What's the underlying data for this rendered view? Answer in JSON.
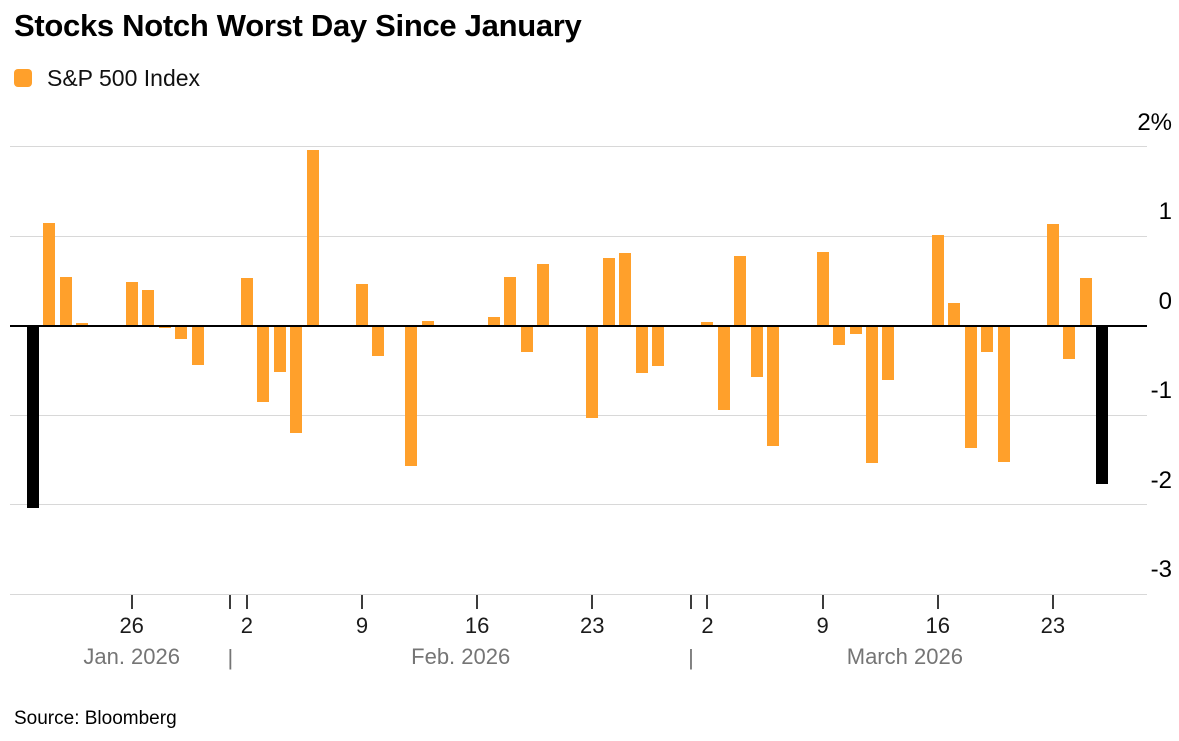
{
  "header": {
    "title": "Stocks Notch Worst Day Since January"
  },
  "legend": {
    "label": "S&P 500 Index"
  },
  "footer": {
    "source": "Source: Bloomberg"
  },
  "colors": {
    "bar": "#FFA02B",
    "highlight_bar": "#000000",
    "gridline": "#D8D8D8",
    "zero_line": "#000000",
    "tick_mark": "#3C3C3C",
    "tick_label": "#1B1B1B",
    "month_label": "#757575",
    "y_label": "#000000"
  },
  "chart_data": {
    "type": "bar",
    "title": "Stocks Notch Worst Day Since January",
    "series_name": "S&P 500 Index",
    "unit": "daily % change",
    "ylim": [
      -3,
      2
    ],
    "grid": true,
    "legend_position": "top-left",
    "y_axis_side": "right",
    "yticks": [
      {
        "value": 2,
        "label": "2%"
      },
      {
        "value": 1,
        "label": "1"
      },
      {
        "value": 0,
        "label": "0"
      },
      {
        "value": -1,
        "label": "-1"
      },
      {
        "value": -2,
        "label": "-2"
      },
      {
        "value": -3,
        "label": "-3"
      }
    ],
    "xticks": [
      {
        "date": "2026-01-26",
        "label": "26"
      },
      {
        "date": "2026-02-02",
        "label": "2"
      },
      {
        "date": "2026-02-09",
        "label": "9"
      },
      {
        "date": "2026-02-16",
        "label": "16"
      },
      {
        "date": "2026-02-23",
        "label": "23"
      },
      {
        "date": "2026-03-02",
        "label": "2"
      },
      {
        "date": "2026-03-09",
        "label": "9"
      },
      {
        "date": "2026-03-16",
        "label": "16"
      },
      {
        "date": "2026-03-23",
        "label": "23"
      }
    ],
    "months": [
      {
        "label": "Jan. 2026",
        "start": "2026-01-20",
        "end": "2026-02-01"
      },
      {
        "label": "Feb. 2026",
        "start": "2026-02-01",
        "end": "2026-03-01"
      },
      {
        "label": "March 2026",
        "start": "2026-03-01",
        "end": "2026-03-27"
      }
    ],
    "month_boundaries": [
      "2026-02-01",
      "2026-03-01"
    ],
    "month_separator_glyph": "|",
    "points": [
      {
        "date": "2026-01-20",
        "value": -2.04,
        "highlight": true
      },
      {
        "date": "2026-01-21",
        "value": 1.15
      },
      {
        "date": "2026-01-22",
        "value": 0.54
      },
      {
        "date": "2026-01-23",
        "value": 0.03
      },
      {
        "date": "2026-01-26",
        "value": 0.49
      },
      {
        "date": "2026-01-27",
        "value": 0.4
      },
      {
        "date": "2026-01-28",
        "value": -0.03
      },
      {
        "date": "2026-01-29",
        "value": -0.15
      },
      {
        "date": "2026-01-30",
        "value": -0.44
      },
      {
        "date": "2026-02-02",
        "value": 0.53
      },
      {
        "date": "2026-02-03",
        "value": -0.85
      },
      {
        "date": "2026-02-04",
        "value": -0.52
      },
      {
        "date": "2026-02-05",
        "value": -1.2
      },
      {
        "date": "2026-02-06",
        "value": 1.96
      },
      {
        "date": "2026-02-09",
        "value": 0.46
      },
      {
        "date": "2026-02-10",
        "value": -0.34
      },
      {
        "date": "2026-02-11",
        "value": 0.01
      },
      {
        "date": "2026-02-12",
        "value": -1.57
      },
      {
        "date": "2026-02-13",
        "value": 0.05
      },
      {
        "date": "2026-02-17",
        "value": 0.1
      },
      {
        "date": "2026-02-18",
        "value": 0.54
      },
      {
        "date": "2026-02-19",
        "value": -0.3
      },
      {
        "date": "2026-02-20",
        "value": 0.69
      },
      {
        "date": "2026-02-23",
        "value": -1.03
      },
      {
        "date": "2026-02-24",
        "value": 0.75
      },
      {
        "date": "2026-02-25",
        "value": 0.81
      },
      {
        "date": "2026-02-26",
        "value": -0.53
      },
      {
        "date": "2026-02-27",
        "value": -0.45
      },
      {
        "date": "2026-03-02",
        "value": 0.04
      },
      {
        "date": "2026-03-03",
        "value": -0.94
      },
      {
        "date": "2026-03-04",
        "value": 0.78
      },
      {
        "date": "2026-03-05",
        "value": -0.58
      },
      {
        "date": "2026-03-06",
        "value": -1.35
      },
      {
        "date": "2026-03-09",
        "value": 0.82
      },
      {
        "date": "2026-03-10",
        "value": -0.22
      },
      {
        "date": "2026-03-11",
        "value": -0.1
      },
      {
        "date": "2026-03-12",
        "value": -1.54
      },
      {
        "date": "2026-03-13",
        "value": -0.61
      },
      {
        "date": "2026-03-16",
        "value": 1.01
      },
      {
        "date": "2026-03-17",
        "value": 0.25
      },
      {
        "date": "2026-03-18",
        "value": -1.37
      },
      {
        "date": "2026-03-19",
        "value": -0.3
      },
      {
        "date": "2026-03-20",
        "value": -1.53
      },
      {
        "date": "2026-03-23",
        "value": 1.13
      },
      {
        "date": "2026-03-24",
        "value": -0.37
      },
      {
        "date": "2026-03-25",
        "value": 0.53
      },
      {
        "date": "2026-03-26",
        "value": -1.77,
        "highlight": true
      }
    ]
  }
}
